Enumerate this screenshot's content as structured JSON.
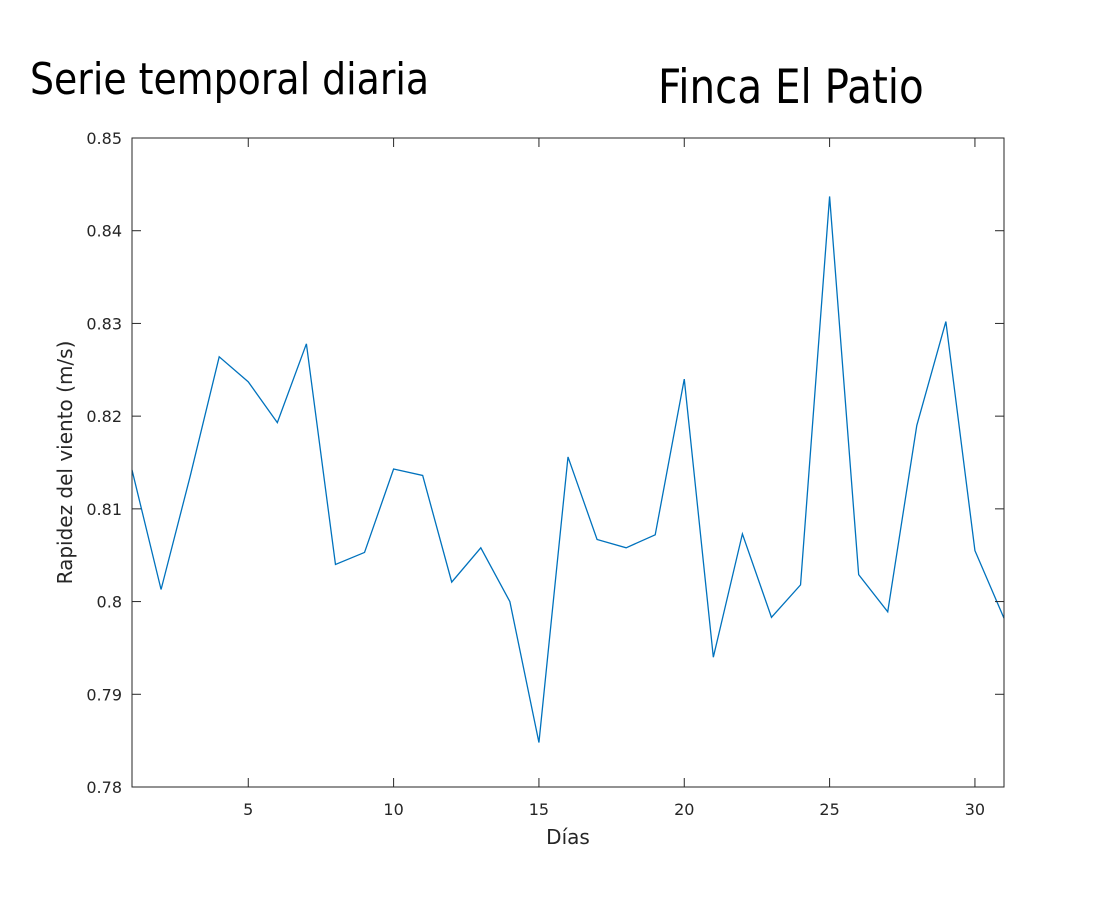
{
  "headline": {
    "left": "Serie temporal diaria",
    "right": "Finca El Patio"
  },
  "colors": {
    "series": "#0072bd",
    "axis": "#262626",
    "background": "#ffffff"
  },
  "chart_data": {
    "type": "line",
    "title": "",
    "xlabel": "Días",
    "ylabel": "Rapidez del viento (m/s)",
    "xlim": [
      1,
      31
    ],
    "ylim": [
      0.78,
      0.85
    ],
    "xticks": [
      5,
      10,
      15,
      20,
      25,
      30
    ],
    "xtick_labels": [
      "5",
      "10",
      "15",
      "20",
      "25",
      "30"
    ],
    "yticks": [
      0.78,
      0.79,
      0.8,
      0.81,
      0.82,
      0.83,
      0.84,
      0.85
    ],
    "ytick_labels": [
      "0.78",
      "0.79",
      "0.8",
      "0.81",
      "0.82",
      "0.83",
      "0.84",
      "0.85"
    ],
    "grid": false,
    "series": [
      {
        "name": "Rapidez del viento",
        "x": [
          1,
          2,
          3,
          4,
          5,
          6,
          7,
          8,
          9,
          10,
          11,
          12,
          13,
          14,
          15,
          16,
          17,
          18,
          19,
          20,
          21,
          22,
          23,
          24,
          25,
          26,
          27,
          28,
          29,
          30,
          31
        ],
        "values": [
          0.8142,
          0.8013,
          0.8135,
          0.8264,
          0.8237,
          0.8193,
          0.8278,
          0.804,
          0.8053,
          0.8143,
          0.8136,
          0.8021,
          0.8058,
          0.8,
          0.7848,
          0.8156,
          0.8067,
          0.8058,
          0.8072,
          0.824,
          0.794,
          0.8073,
          0.7983,
          0.8018,
          0.8437,
          0.8029,
          0.7989,
          0.819,
          0.8302,
          0.8055,
          0.7982
        ]
      }
    ]
  }
}
